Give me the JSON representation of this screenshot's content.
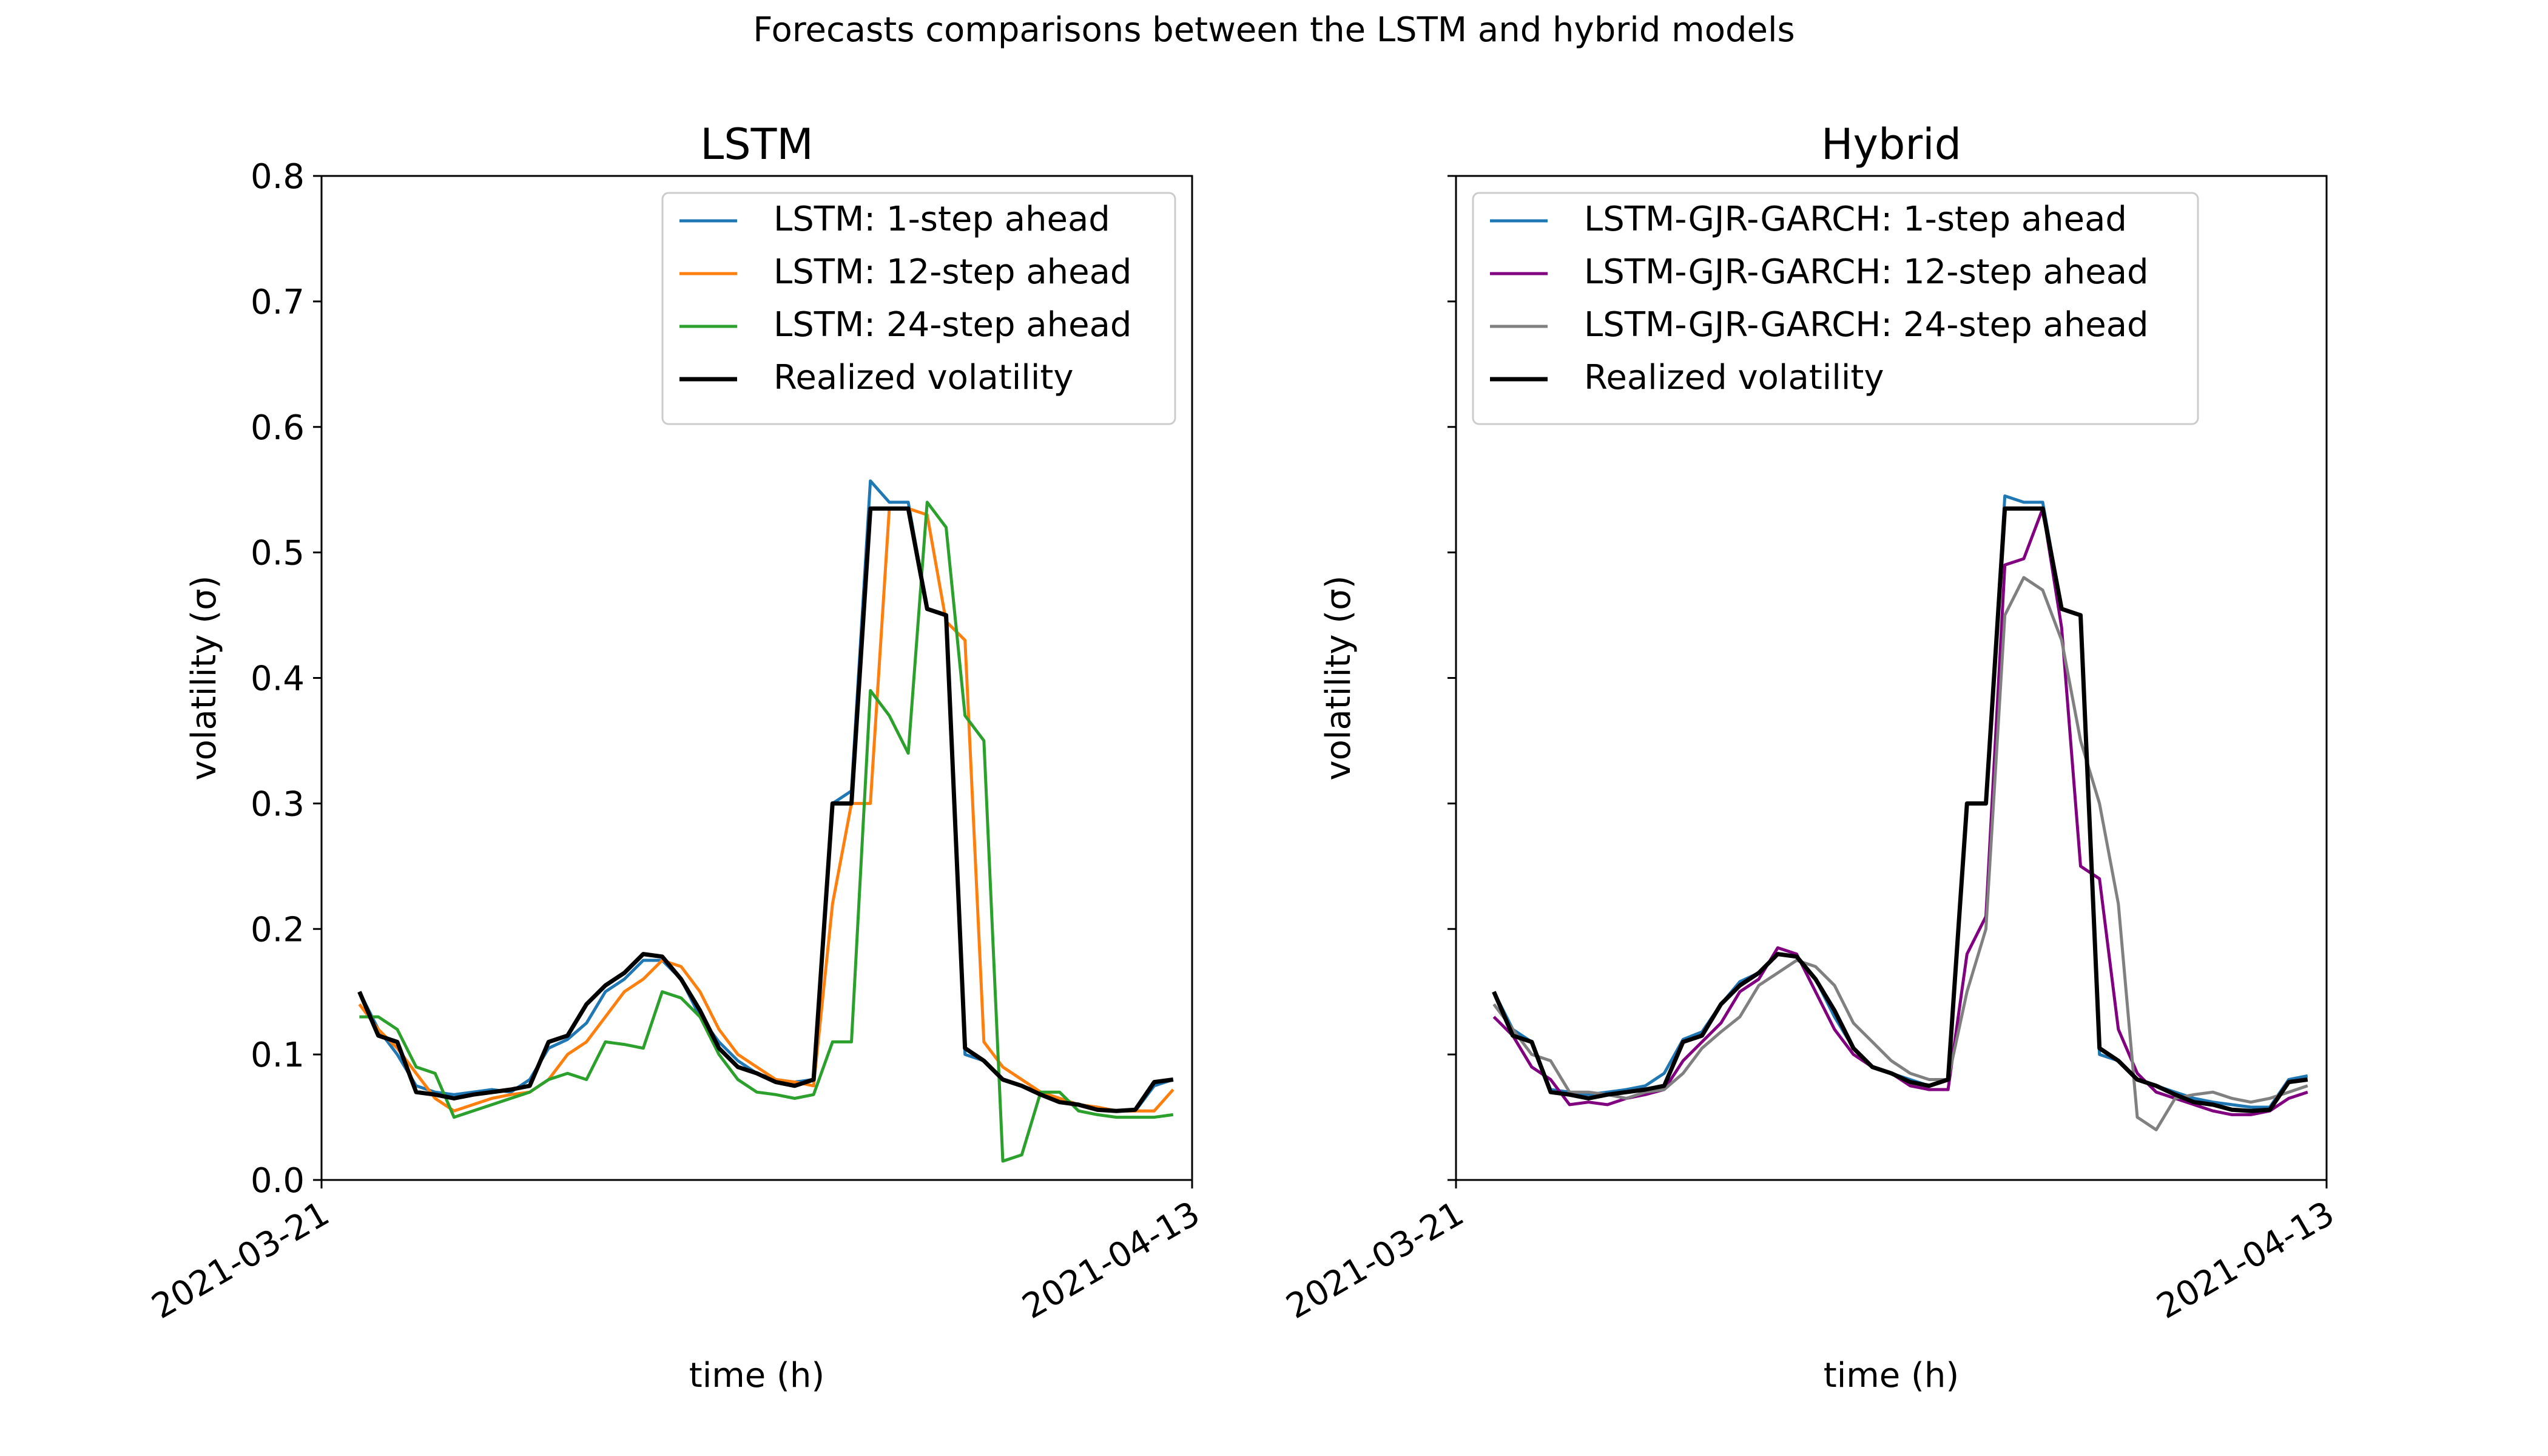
{
  "figure": {
    "suptitle": "Forecasts comparisons between the LSTM and hybrid models"
  },
  "chart_data": [
    {
      "type": "line",
      "title": "LSTM",
      "xlabel": "time (h)",
      "ylabel": "volatility (σ)",
      "xlim": [
        "2021-03-21",
        "2021-04-13"
      ],
      "ylim": [
        0,
        0.8
      ],
      "x_ticks": [
        "2021-03-21",
        "2021-04-13"
      ],
      "y_ticks": [
        "0.0",
        "0.1",
        "0.2",
        "0.3",
        "0.4",
        "0.5",
        "0.6",
        "0.7",
        "0.8"
      ],
      "legend_position": "top-right",
      "x": [
        "2021-03-22T00:00",
        "2021-03-22T12:00",
        "2021-03-23T00:00",
        "2021-03-23T12:00",
        "2021-03-24T00:00",
        "2021-03-24T12:00",
        "2021-03-25T00:00",
        "2021-03-25T12:00",
        "2021-03-26T00:00",
        "2021-03-26T12:00",
        "2021-03-27T00:00",
        "2021-03-27T12:00",
        "2021-03-28T00:00",
        "2021-03-28T12:00",
        "2021-03-29T00:00",
        "2021-03-29T12:00",
        "2021-03-30T00:00",
        "2021-03-30T12:00",
        "2021-03-31T00:00",
        "2021-03-31T12:00",
        "2021-04-01T00:00",
        "2021-04-01T12:00",
        "2021-04-02T00:00",
        "2021-04-02T12:00",
        "2021-04-03T00:00",
        "2021-04-03T12:00",
        "2021-04-04T00:00",
        "2021-04-04T12:00",
        "2021-04-05T00:00",
        "2021-04-05T12:00",
        "2021-04-06T00:00",
        "2021-04-06T12:00",
        "2021-04-07T00:00",
        "2021-04-07T12:00",
        "2021-04-08T00:00",
        "2021-04-08T12:00",
        "2021-04-09T00:00",
        "2021-04-09T12:00",
        "2021-04-10T00:00",
        "2021-04-10T12:00",
        "2021-04-11T00:00",
        "2021-04-11T12:00",
        "2021-04-12T00:00",
        "2021-04-12T12:00"
      ],
      "series": [
        {
          "name": "LSTM: 1-step ahead",
          "color": "#1f77b4",
          "width": 5,
          "values": [
            0.15,
            0.12,
            0.1,
            0.075,
            0.07,
            0.068,
            0.07,
            0.072,
            0.07,
            0.08,
            0.105,
            0.112,
            0.125,
            0.15,
            0.16,
            0.175,
            0.175,
            0.16,
            0.13,
            0.11,
            0.095,
            0.085,
            0.08,
            0.078,
            0.08,
            0.3,
            0.31,
            0.557,
            0.54,
            0.54,
            0.455,
            0.45,
            0.1,
            0.095,
            0.08,
            0.075,
            0.07,
            0.065,
            0.06,
            0.058,
            0.055,
            0.055,
            0.075,
            0.08
          ]
        },
        {
          "name": "LSTM: 12-step ahead",
          "color": "#ff7f0e",
          "width": 5,
          "values": [
            0.14,
            0.12,
            0.105,
            0.085,
            0.065,
            0.055,
            0.06,
            0.065,
            0.068,
            0.07,
            0.08,
            0.1,
            0.11,
            0.13,
            0.15,
            0.16,
            0.175,
            0.17,
            0.15,
            0.12,
            0.1,
            0.09,
            0.08,
            0.078,
            0.075,
            0.22,
            0.3,
            0.3,
            0.535,
            0.535,
            0.53,
            0.445,
            0.43,
            0.11,
            0.09,
            0.08,
            0.07,
            0.065,
            0.06,
            0.058,
            0.055,
            0.055,
            0.055,
            0.072
          ]
        },
        {
          "name": "LSTM: 24-step ahead",
          "color": "#2ca02c",
          "width": 5,
          "values": [
            0.13,
            0.13,
            0.12,
            0.09,
            0.085,
            0.05,
            0.055,
            0.06,
            0.065,
            0.07,
            0.08,
            0.085,
            0.08,
            0.11,
            0.108,
            0.105,
            0.15,
            0.145,
            0.13,
            0.1,
            0.08,
            0.07,
            0.068,
            0.065,
            0.068,
            0.11,
            0.11,
            0.39,
            0.37,
            0.34,
            0.54,
            0.52,
            0.37,
            0.35,
            0.015,
            0.02,
            0.07,
            0.07,
            0.055,
            0.052,
            0.05,
            0.05,
            0.05,
            0.052
          ]
        },
        {
          "name": "Realized volatility",
          "color": "#000000",
          "width": 7,
          "values": [
            0.15,
            0.115,
            0.11,
            0.07,
            0.068,
            0.065,
            0.068,
            0.07,
            0.072,
            0.075,
            0.11,
            0.115,
            0.14,
            0.155,
            0.165,
            0.18,
            0.178,
            0.16,
            0.135,
            0.105,
            0.09,
            0.085,
            0.078,
            0.075,
            0.08,
            0.3,
            0.3,
            0.535,
            0.535,
            0.535,
            0.455,
            0.45,
            0.105,
            0.095,
            0.08,
            0.075,
            0.068,
            0.062,
            0.06,
            0.056,
            0.055,
            0.056,
            0.078,
            0.08
          ]
        }
      ]
    },
    {
      "type": "line",
      "title": "Hybrid",
      "xlabel": "time (h)",
      "ylabel": "volatility (σ)",
      "xlim": [
        "2021-03-21",
        "2021-04-13"
      ],
      "ylim": [
        0,
        0.8
      ],
      "x_ticks": [
        "2021-03-21",
        "2021-04-13"
      ],
      "y_ticks": [],
      "legend_position": "top-left",
      "x": [
        "2021-03-22T00:00",
        "2021-03-22T12:00",
        "2021-03-23T00:00",
        "2021-03-23T12:00",
        "2021-03-24T00:00",
        "2021-03-24T12:00",
        "2021-03-25T00:00",
        "2021-03-25T12:00",
        "2021-03-26T00:00",
        "2021-03-26T12:00",
        "2021-03-27T00:00",
        "2021-03-27T12:00",
        "2021-03-28T00:00",
        "2021-03-28T12:00",
        "2021-03-29T00:00",
        "2021-03-29T12:00",
        "2021-03-30T00:00",
        "2021-03-30T12:00",
        "2021-03-31T00:00",
        "2021-03-31T12:00",
        "2021-04-01T00:00",
        "2021-04-01T12:00",
        "2021-04-02T00:00",
        "2021-04-02T12:00",
        "2021-04-03T00:00",
        "2021-04-03T12:00",
        "2021-04-04T00:00",
        "2021-04-04T12:00",
        "2021-04-05T00:00",
        "2021-04-05T12:00",
        "2021-04-06T00:00",
        "2021-04-06T12:00",
        "2021-04-07T00:00",
        "2021-04-07T12:00",
        "2021-04-08T00:00",
        "2021-04-08T12:00",
        "2021-04-09T00:00",
        "2021-04-09T12:00",
        "2021-04-10T00:00",
        "2021-04-10T12:00",
        "2021-04-11T00:00",
        "2021-04-11T12:00",
        "2021-04-12T00:00",
        "2021-04-12T12:00"
      ],
      "series": [
        {
          "name": "LSTM-GJR-GARCH: 1-step ahead",
          "color": "#1f77b4",
          "width": 5,
          "values": [
            0.15,
            0.12,
            0.11,
            0.072,
            0.07,
            0.068,
            0.07,
            0.072,
            0.075,
            0.085,
            0.112,
            0.118,
            0.14,
            0.158,
            0.165,
            0.18,
            0.178,
            0.16,
            0.13,
            0.105,
            0.09,
            0.085,
            0.08,
            0.075,
            0.08,
            0.3,
            0.3,
            0.545,
            0.54,
            0.54,
            0.455,
            0.45,
            0.1,
            0.095,
            0.08,
            0.075,
            0.07,
            0.065,
            0.062,
            0.06,
            0.058,
            0.058,
            0.08,
            0.083
          ]
        },
        {
          "name": "LSTM-GJR-GARCH: 12-step ahead",
          "color": "#800080",
          "width": 5,
          "values": [
            0.13,
            0.115,
            0.09,
            0.08,
            0.06,
            0.062,
            0.06,
            0.065,
            0.068,
            0.072,
            0.095,
            0.11,
            0.125,
            0.15,
            0.16,
            0.185,
            0.18,
            0.15,
            0.12,
            0.1,
            0.09,
            0.085,
            0.075,
            0.072,
            0.072,
            0.18,
            0.21,
            0.49,
            0.495,
            0.535,
            0.44,
            0.25,
            0.24,
            0.12,
            0.085,
            0.07,
            0.065,
            0.06,
            0.055,
            0.052,
            0.052,
            0.055,
            0.065,
            0.07
          ]
        },
        {
          "name": "LSTM-GJR-GARCH: 24-step ahead",
          "color": "#808080",
          "width": 5,
          "values": [
            0.14,
            0.12,
            0.1,
            0.095,
            0.07,
            0.07,
            0.068,
            0.065,
            0.07,
            0.072,
            0.085,
            0.105,
            0.118,
            0.13,
            0.155,
            0.165,
            0.175,
            0.17,
            0.155,
            0.125,
            0.11,
            0.095,
            0.085,
            0.08,
            0.08,
            0.15,
            0.2,
            0.45,
            0.48,
            0.47,
            0.43,
            0.35,
            0.3,
            0.22,
            0.05,
            0.04,
            0.065,
            0.068,
            0.07,
            0.065,
            0.062,
            0.065,
            0.07,
            0.075
          ]
        },
        {
          "name": "Realized volatility",
          "color": "#000000",
          "width": 7,
          "values": [
            0.15,
            0.115,
            0.11,
            0.07,
            0.068,
            0.065,
            0.068,
            0.07,
            0.072,
            0.075,
            0.11,
            0.115,
            0.14,
            0.155,
            0.165,
            0.18,
            0.178,
            0.16,
            0.135,
            0.105,
            0.09,
            0.085,
            0.078,
            0.075,
            0.08,
            0.3,
            0.3,
            0.535,
            0.535,
            0.535,
            0.455,
            0.45,
            0.105,
            0.095,
            0.08,
            0.075,
            0.068,
            0.062,
            0.06,
            0.056,
            0.055,
            0.056,
            0.078,
            0.08
          ]
        }
      ]
    }
  ]
}
